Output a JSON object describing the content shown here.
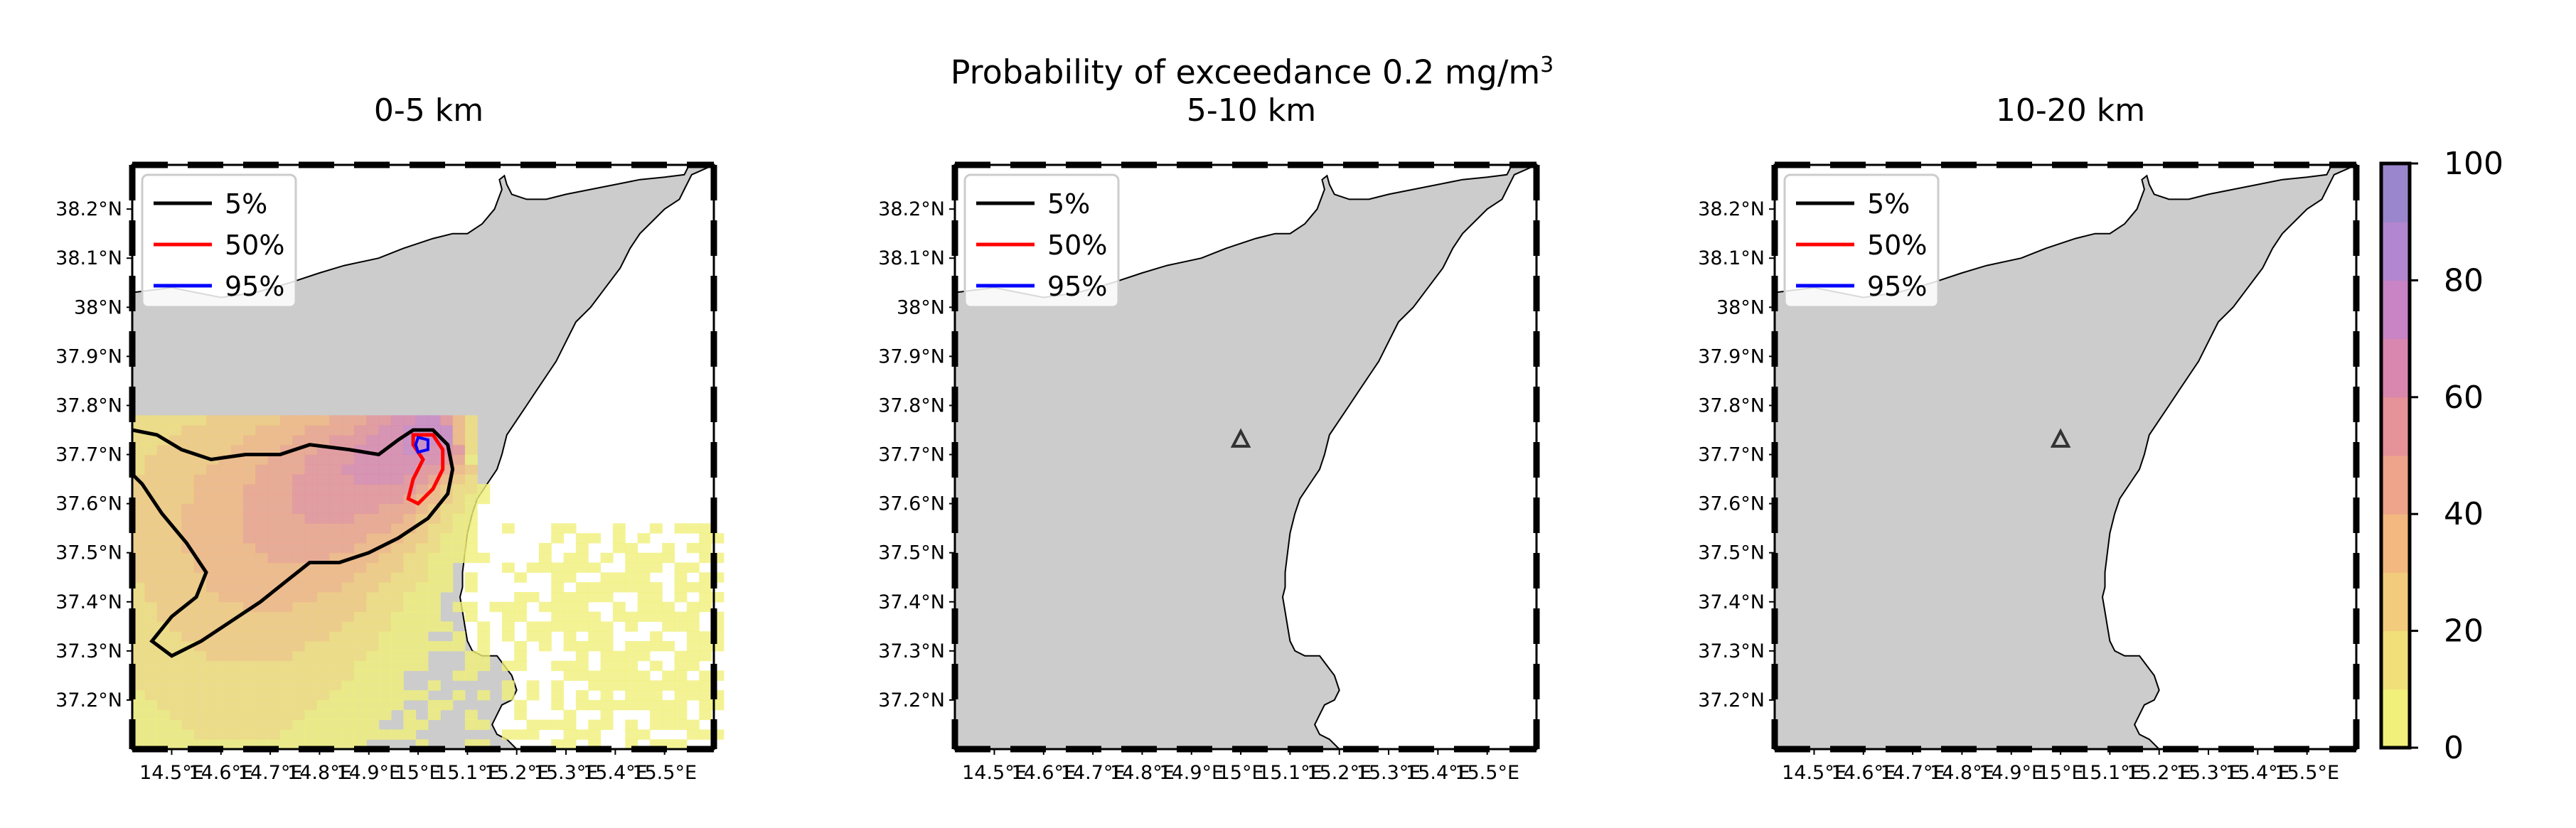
{
  "title": {
    "main": "Probability of exceedance 0.2 mg/m",
    "superscript": "3"
  },
  "chart_data": [
    {
      "type": "heatmap",
      "title": "0-5 km",
      "xlabel": "",
      "ylabel": "",
      "xlim": [
        14.42,
        15.6
      ],
      "ylim": [
        37.1,
        38.29
      ],
      "x_ticks": [
        "14.5°E",
        "14.6°E",
        "14.7°E",
        "14.8°E",
        "14.9°E",
        "15°E",
        "15.1°E",
        "15.2°E",
        "15.3°E",
        "15.4°E",
        "15.5°E"
      ],
      "y_ticks": [
        "37.2°N",
        "37.3°N",
        "37.4°N",
        "37.5°N",
        "37.6°N",
        "37.7°N",
        "37.8°N",
        "37.9°N",
        "38°N",
        "38.1°N",
        "38.2°N"
      ],
      "legend": {
        "placement": "top-left",
        "entries": [
          {
            "label": "5%",
            "color": "#000000"
          },
          {
            "label": "50%",
            "color": "#ff0000"
          },
          {
            "label": "95%",
            "color": "#0000ff"
          }
        ]
      },
      "volcano": {
        "lon": 15.0,
        "lat": 37.75
      },
      "probability_field": "non-zero, max about 100% near 15.0°E 37.73°N",
      "grid": false
    },
    {
      "type": "heatmap",
      "title": "5-10 km",
      "xlim": [
        14.42,
        15.6
      ],
      "ylim": [
        37.1,
        38.29
      ],
      "x_ticks": [
        "14.5°E",
        "14.6°E",
        "14.7°E",
        "14.8°E",
        "14.9°E",
        "15°E",
        "15.1°E",
        "15.2°E",
        "15.3°E",
        "15.4°E",
        "15.5°E"
      ],
      "y_ticks": [
        "37.2°N",
        "37.3°N",
        "37.4°N",
        "37.5°N",
        "37.6°N",
        "37.7°N",
        "37.8°N",
        "37.9°N",
        "38°N",
        "38.1°N",
        "38.2°N"
      ],
      "legend": {
        "placement": "top-left",
        "entries": [
          {
            "label": "5%",
            "color": "#000000"
          },
          {
            "label": "50%",
            "color": "#ff0000"
          },
          {
            "label": "95%",
            "color": "#0000ff"
          }
        ]
      },
      "volcano": {
        "lon": 15.0,
        "lat": 37.73
      },
      "probability_field": "none",
      "grid": false
    },
    {
      "type": "heatmap",
      "title": "10-20 km",
      "xlim": [
        14.42,
        15.6
      ],
      "ylim": [
        37.1,
        38.29
      ],
      "x_ticks": [
        "14.5°E",
        "14.6°E",
        "14.7°E",
        "14.8°E",
        "14.9°E",
        "15°E",
        "15.1°E",
        "15.2°E",
        "15.3°E",
        "15.4°E",
        "15.5°E"
      ],
      "y_ticks": [
        "37.2°N",
        "37.3°N",
        "37.4°N",
        "37.5°N",
        "37.6°N",
        "37.7°N",
        "37.8°N",
        "37.9°N",
        "38°N",
        "38.1°N",
        "38.2°N"
      ],
      "legend": {
        "placement": "top-left",
        "entries": [
          {
            "label": "5%",
            "color": "#000000"
          },
          {
            "label": "50%",
            "color": "#ff0000"
          },
          {
            "label": "95%",
            "color": "#0000ff"
          }
        ]
      },
      "volcano": {
        "lon": 15.0,
        "lat": 37.73
      },
      "probability_field": "none",
      "grid": false
    }
  ],
  "colorbar": {
    "ticks": [
      "0",
      "20",
      "40",
      "60",
      "80",
      "100"
    ],
    "range": [
      0,
      100
    ],
    "colors": [
      "#f0f07a",
      "#f1e07a",
      "#f2cc7c",
      "#f2b880",
      "#eda48a",
      "#e59298",
      "#d987ae",
      "#c884c4",
      "#b286d0",
      "#9a86cc"
    ]
  }
}
